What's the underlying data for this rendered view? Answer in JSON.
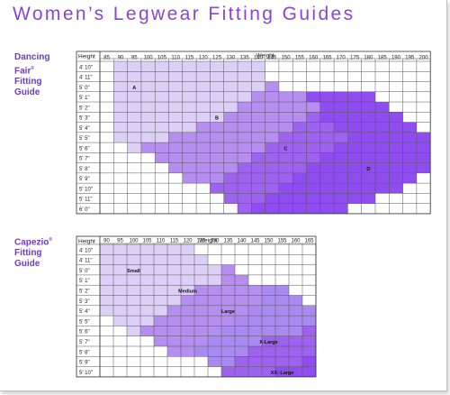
{
  "page": {
    "title": "Women’s Legwear Fitting Guides"
  },
  "colors": {
    "title": "#8a45d6",
    "label": "#6c3bc8",
    "grid": "#555555",
    "size_a": "#dcd0f6",
    "size_b": "#b58ef0",
    "size_c": "#9d63ee",
    "size_d": "#8f4cf0",
    "size_e": "#a98af0"
  },
  "guides": [
    {
      "name_line1": "Dancing",
      "name_line2": "Fair",
      "name_sup": "®",
      "name_line3": "Fitting",
      "name_line4": "Guide",
      "row_header": "Height",
      "column_header": "Weight",
      "chart_data": {
        "type": "table",
        "title": "",
        "xlabel": "Weight",
        "ylabel": "Height",
        "weights": [
          "85",
          "90",
          "95",
          "100",
          "105",
          "110",
          "115",
          "120",
          "125",
          "130",
          "135",
          "140",
          "145",
          "150",
          "155",
          "160",
          "165",
          "170",
          "175",
          "180",
          "185",
          "190",
          "195",
          "200"
        ],
        "heights": [
          "4' 10\"",
          "4' 11\"",
          "5' 0\"",
          "5' 1\"",
          "5' 2\"",
          "5' 3\"",
          "5' 4\"",
          "5' 5\"",
          "5' 6\"",
          "5' 7\"",
          "5' 8\"",
          "5' 9\"",
          "5' 10\"",
          "5' 11\"",
          "6' 0\""
        ],
        "size_labels": [
          {
            "label": "A",
            "weight": "95",
            "height": "5' 0\""
          },
          {
            "label": "B",
            "weight": "125",
            "height": "5' 3\""
          },
          {
            "label": "C",
            "weight": "150",
            "height": "5' 6\""
          },
          {
            "label": "D",
            "weight": "180",
            "height": "5' 8\""
          }
        ],
        "size_regions": {
          "A": [
            [
              "4' 10\"",
              "90",
              "140"
            ],
            [
              "4' 11\"",
              "90",
              "140"
            ],
            [
              "5' 0\"",
              "90",
              "140"
            ],
            [
              "5' 1\"",
              "90",
              "135"
            ],
            [
              "5' 2\"",
              "90",
              "130"
            ],
            [
              "5' 3\"",
              "90",
              "125"
            ],
            [
              "5' 4\"",
              "90",
              "115"
            ],
            [
              "5' 5\"",
              "90",
              "105"
            ],
            [
              "5' 6\"",
              "95",
              "95"
            ]
          ],
          "B": [
            [
              "5' 0\"",
              "145",
              "145"
            ],
            [
              "5' 1\"",
              "140",
              "155"
            ],
            [
              "5' 2\"",
              "135",
              "160"
            ],
            [
              "5' 3\"",
              "130",
              "155"
            ],
            [
              "5' 4\"",
              "120",
              "150"
            ],
            [
              "5' 5\"",
              "110",
              "145"
            ],
            [
              "5' 6\"",
              "100",
              "140"
            ],
            [
              "5' 7\"",
              "105",
              "135"
            ],
            [
              "5' 8\"",
              "110",
              "130"
            ],
            [
              "5' 9\"",
              "115",
              "125"
            ]
          ],
          "C": [
            [
              "5' 3\"",
              "160",
              "160"
            ],
            [
              "5' 4\"",
              "155",
              "165"
            ],
            [
              "5' 5\"",
              "150",
              "170"
            ],
            [
              "5' 6\"",
              "145",
              "165"
            ],
            [
              "5' 7\"",
              "140",
              "160"
            ],
            [
              "5' 8\"",
              "135",
              "155"
            ],
            [
              "5' 9\"",
              "130",
              "150"
            ],
            [
              "5' 10\"",
              "125",
              "145"
            ],
            [
              "5' 11\"",
              "130",
              "140"
            ],
            [
              "6' 0\"",
              "135",
              "135"
            ]
          ],
          "D": [
            [
              "5' 1\"",
              "160",
              "180"
            ],
            [
              "5' 2\"",
              "165",
              "185"
            ],
            [
              "5' 3\"",
              "165",
              "190"
            ],
            [
              "5' 4\"",
              "170",
              "195"
            ],
            [
              "5' 5\"",
              "175",
              "200"
            ],
            [
              "5' 6\"",
              "170",
              "200"
            ],
            [
              "5' 7\"",
              "165",
              "200"
            ],
            [
              "5' 8\"",
              "160",
              "200"
            ],
            [
              "5' 9\"",
              "155",
              "195"
            ],
            [
              "5' 10\"",
              "150",
              "190"
            ],
            [
              "5' 11\"",
              "145",
              "180"
            ],
            [
              "6' 0\"",
              "140",
              "170"
            ]
          ]
        }
      }
    },
    {
      "name_line1": "Capezio",
      "name_line2": "",
      "name_sup": "®",
      "name_line3": "Fitting",
      "name_line4": "Guide",
      "row_header": "Height",
      "column_header": "Weight",
      "chart_data": {
        "type": "table",
        "title": "",
        "xlabel": "Weight",
        "ylabel": "Height",
        "weights": [
          "90",
          "95",
          "100",
          "105",
          "110",
          "115",
          "120",
          "125",
          "130",
          "135",
          "140",
          "145",
          "150",
          "155",
          "160",
          "165"
        ],
        "heights": [
          "4' 10\"",
          "4' 11\"",
          "5' 0\"",
          "5' 1\"",
          "5' 2\"",
          "5' 3\"",
          "5' 4\"",
          "5' 5\"",
          "5' 6\"",
          "5' 7\"",
          "5' 8\"",
          "5' 9\"",
          "5' 10\""
        ],
        "size_labels": [
          {
            "label": "Small",
            "weight": "100",
            "height": "5' 0\""
          },
          {
            "label": "Medium",
            "weight": "120",
            "height": "5' 2\""
          },
          {
            "label": "Large",
            "weight": "135",
            "height": "5' 4\""
          },
          {
            "label": "X-Large",
            "weight": "150",
            "height": "5' 7\""
          },
          {
            "label": "XX- Large",
            "weight": "155",
            "height": "5' 10\""
          }
        ],
        "size_regions": {
          "Small": [
            [
              "4' 10\"",
              "90",
              "120"
            ],
            [
              "4' 11\"",
              "90",
              "125"
            ],
            [
              "5' 0\"",
              "90",
              "130"
            ],
            [
              "5' 1\"",
              "90",
              "130"
            ],
            [
              "5' 2\"",
              "90",
              "120"
            ],
            [
              "5' 3\"",
              "90",
              "115"
            ],
            [
              "5' 4\"",
              "90",
              "110"
            ],
            [
              "5' 5\"",
              "95",
              "105"
            ],
            [
              "5' 6\"",
              "100",
              "100"
            ]
          ],
          "Medium": [
            [
              "5' 0\"",
              "135",
              "135"
            ],
            [
              "5' 1\"",
              "135",
              "140"
            ],
            [
              "5' 2\"",
              "125",
              "145"
            ],
            [
              "5' 3\"",
              "120",
              "145"
            ],
            [
              "5' 4\"",
              "115",
              "140"
            ],
            [
              "5' 5\"",
              "110",
              "135"
            ],
            [
              "5' 6\"",
              "105",
              "130"
            ],
            [
              "5' 7\"",
              "110",
              "125"
            ],
            [
              "5' 8\"",
              "115",
              "120"
            ]
          ],
          "Large": [
            [
              "5' 2\"",
              "150",
              "155"
            ],
            [
              "5' 3\"",
              "150",
              "160"
            ],
            [
              "5' 4\"",
              "145",
              "165"
            ],
            [
              "5' 5\"",
              "140",
              "165"
            ],
            [
              "5' 6\"",
              "135",
              "160"
            ],
            [
              "5' 7\"",
              "130",
              "145"
            ],
            [
              "5' 8\"",
              "125",
              "140"
            ],
            [
              "5' 9\"",
              "130",
              "135"
            ]
          ],
          "X-Large": [
            [
              "5' 6\"",
              "165",
              "165"
            ],
            [
              "5' 7\"",
              "150",
              "165"
            ],
            [
              "5' 8\"",
              "145",
              "165"
            ],
            [
              "5' 9\"",
              "140",
              "160"
            ],
            [
              "5' 10\"",
              "135",
              "150"
            ]
          ],
          "XX- Large": [
            [
              "5' 9\"",
              "165",
              "165"
            ],
            [
              "5' 10\"",
              "155",
              "165"
            ]
          ]
        }
      }
    }
  ]
}
